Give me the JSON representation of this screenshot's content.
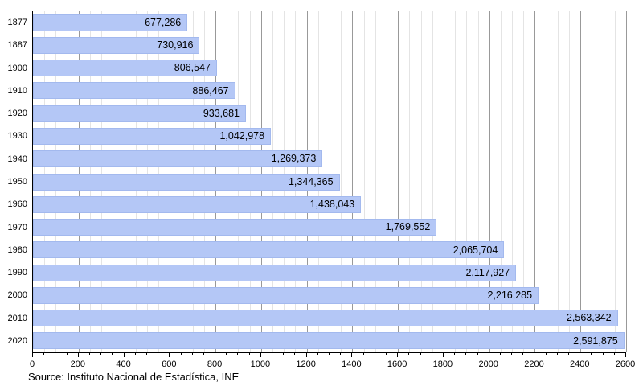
{
  "chart_data": {
    "type": "bar",
    "orientation": "horizontal",
    "title": "",
    "categories": [
      "1877",
      "1887",
      "1900",
      "1910",
      "1920",
      "1930",
      "1940",
      "1950",
      "1960",
      "1970",
      "1980",
      "1990",
      "2000",
      "2010",
      "2020"
    ],
    "values": [
      677286,
      730916,
      806547,
      886467,
      933681,
      1042978,
      1269373,
      1344365,
      1438043,
      1769552,
      2065704,
      2117927,
      2216285,
      2563342,
      2591875
    ],
    "value_labels": [
      "677,286",
      "730,916",
      "806,547",
      "886,467",
      "933,681",
      "1,042,978",
      "1,269,373",
      "1,344,365",
      "1,438,043",
      "1,769,552",
      "2,065,704",
      "2,117,927",
      "2,216,285",
      "2,563,342",
      "2,591,875"
    ],
    "xlabel": "",
    "ylabel": "",
    "x_axis": {
      "min": 0,
      "max": 2600,
      "major_step": 200,
      "minor_step": 50,
      "unit_divisor": 1000,
      "tick_labels": [
        "0",
        "200",
        "400",
        "600",
        "800",
        "1000",
        "1200",
        "1400",
        "1600",
        "1800",
        "2000",
        "2200",
        "2400",
        "2600"
      ]
    },
    "grid": "on",
    "legend": "none",
    "value_label_position": "inside-end",
    "colors": {
      "bar_fill": "#b4c7f6",
      "bar_border": "#a3b9ee",
      "grid_minor": "#e4e4e4",
      "grid_major": "#999999",
      "axis": "#000000",
      "text": "#000000",
      "background": "#ffffff"
    }
  },
  "source_note": "Source: Instituto Nacional de Estadística, INE"
}
